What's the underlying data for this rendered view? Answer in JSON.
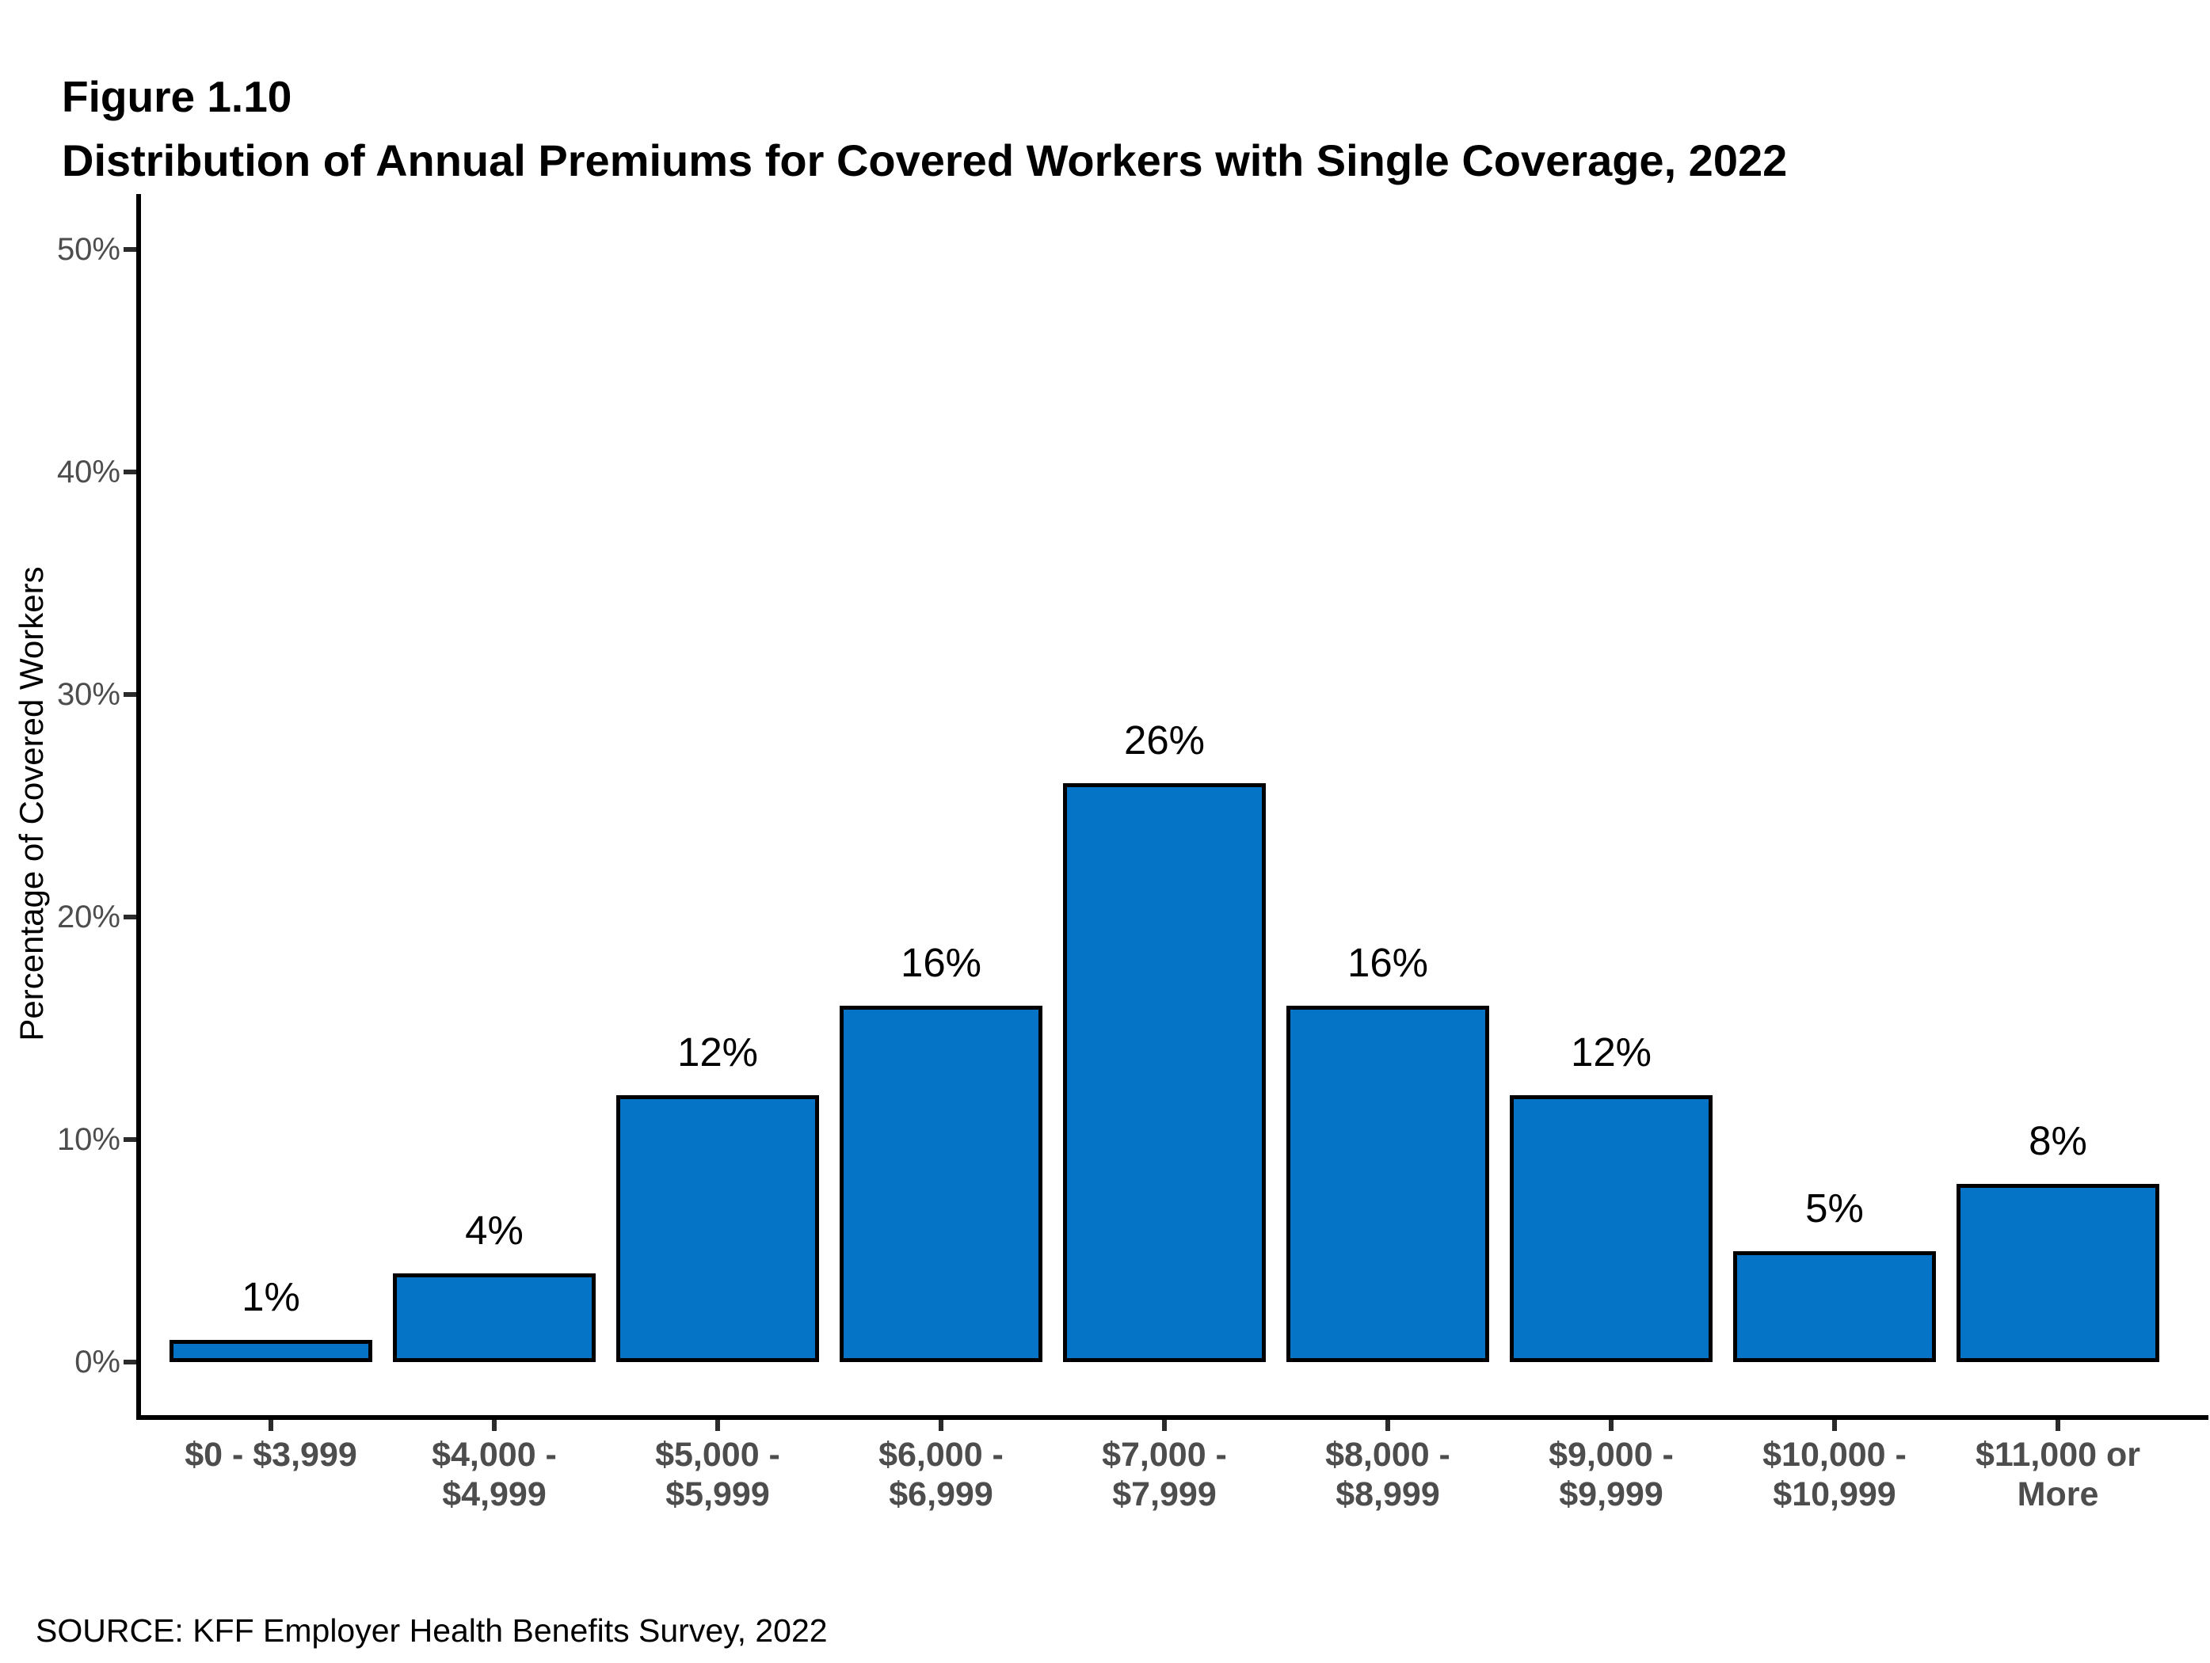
{
  "figure": {
    "label": "Figure 1.10",
    "title": "Distribution of Annual Premiums for Covered Workers with Single Coverage, 2022",
    "source": "SOURCE: KFF Employer Health Benefits Survey, 2022"
  },
  "chart_data": {
    "type": "bar",
    "figure_label": "Figure 1.10",
    "title": "Distribution of Annual Premiums for Covered Workers with Single Coverage, 2022",
    "xlabel": "",
    "ylabel": "Percentage of Covered Workers",
    "ylim": [
      0,
      50
    ],
    "yticks": [
      0,
      10,
      20,
      30,
      40,
      50
    ],
    "ytick_labels": [
      "0%",
      "10%",
      "20%",
      "30%",
      "40%",
      "50%"
    ],
    "grid": false,
    "legend": "none",
    "categories": [
      "$0 - $3,999",
      "$4,000 - $4,999",
      "$5,000 - $5,999",
      "$6,000 - $6,999",
      "$7,000 - $7,999",
      "$8,000 - $8,999",
      "$9,000 - $9,999",
      "$10,000 - $10,999",
      "$11,000 or More"
    ],
    "category_label_lines": [
      [
        "$0 - $3,999"
      ],
      [
        "$4,000 -",
        "$4,999"
      ],
      [
        "$5,000 -",
        "$5,999"
      ],
      [
        "$6,000 -",
        "$6,999"
      ],
      [
        "$7,000 -",
        "$7,999"
      ],
      [
        "$8,000 -",
        "$8,999"
      ],
      [
        "$9,000 -",
        "$9,999"
      ],
      [
        "$10,000 -",
        "$10,999"
      ],
      [
        "$11,000 or",
        "More"
      ]
    ],
    "values": [
      1,
      4,
      12,
      16,
      26,
      16,
      12,
      5,
      8
    ],
    "value_labels": [
      "1%",
      "4%",
      "12%",
      "16%",
      "26%",
      "16%",
      "12%",
      "5%",
      "8%"
    ],
    "source": "SOURCE: KFF Employer Health Benefits Survey, 2022",
    "colors": {
      "bar_fill": "#0674c6",
      "bar_border": "#000000",
      "axis_line": "#000000",
      "tick_mark": "#2b2b2b",
      "tick_label": "#4d4d4d",
      "text": "#000000",
      "background": "#ffffff"
    }
  }
}
